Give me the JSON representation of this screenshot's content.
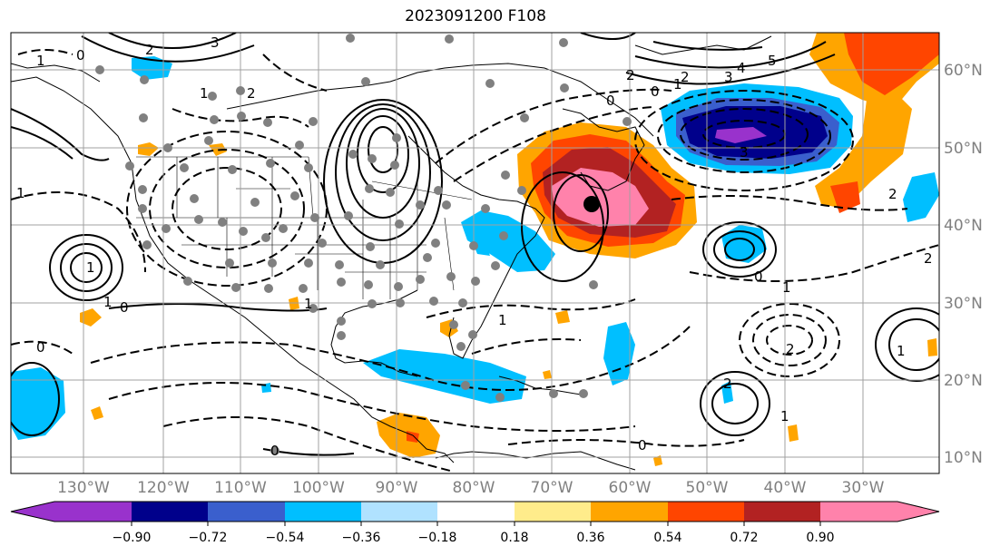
{
  "title": "2023091200 F108",
  "longitude_labels": [
    "130°W",
    "120°W",
    "110°W",
    "100°W",
    "90°W",
    "80°W",
    "70°W",
    "60°W",
    "50°W",
    "40°W",
    "30°W"
  ],
  "latitude_labels": [
    "60°N",
    "50°N",
    "40°N",
    "30°N",
    "20°N",
    "10°N"
  ],
  "colorbar": {
    "ticks": [
      "−0.90",
      "−0.72",
      "−0.54",
      "−0.36",
      "−0.18",
      "0.18",
      "0.36",
      "0.54",
      "0.72",
      "0.90"
    ],
    "colors": [
      "#9932cc",
      "#00008b",
      "#3a5fcd",
      "#00bfff",
      "#b0e2ff",
      "#ffffff",
      "#ffec8b",
      "#ffa500",
      "#ff4500",
      "#b22222",
      "#ff82ab"
    ]
  },
  "contour_labels": [
    "2",
    "3",
    "1",
    "0",
    "2",
    "1",
    "2",
    "4",
    "5",
    "2",
    "3",
    "0",
    "1",
    "0",
    "3",
    "1",
    "1",
    "2",
    "2",
    "1",
    "1",
    "0",
    "2",
    "1",
    "0",
    "1",
    "0",
    "0",
    "2",
    "0",
    "1",
    "1"
  ],
  "marker_color": "#808080"
}
